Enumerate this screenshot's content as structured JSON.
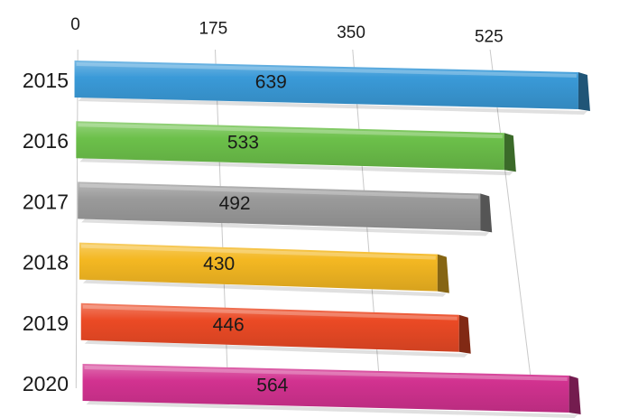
{
  "chart_data": {
    "type": "bar",
    "orientation": "horizontal",
    "style": "3d-perspective",
    "title": "",
    "xlabel": "",
    "ylabel": "",
    "categories": [
      "2015",
      "2016",
      "2017",
      "2018",
      "2019",
      "2020"
    ],
    "values": [
      639,
      533,
      492,
      430,
      446,
      564
    ],
    "data_labels": [
      "639",
      "533",
      "492",
      "430",
      "446",
      "564"
    ],
    "x_ticks": [
      0,
      175,
      350,
      525
    ],
    "x_tick_labels": [
      "0",
      "175",
      "350",
      "525"
    ],
    "xlim": [
      0,
      525
    ],
    "grid": "vertical",
    "legend": "none",
    "colors": [
      "#3a9ad8",
      "#6cc04a",
      "#9a9a9a",
      "#f4b822",
      "#eb4a25",
      "#d23290"
    ]
  }
}
